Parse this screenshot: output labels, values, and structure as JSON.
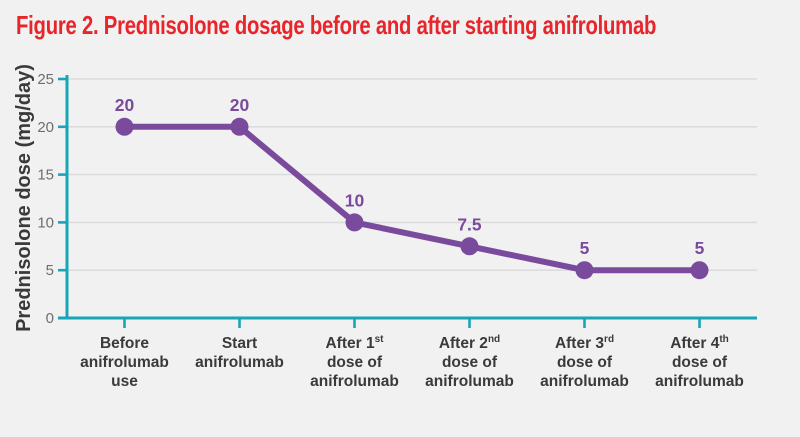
{
  "title": "Figure 2. Prednisolone dosage before and after starting anifrolumab",
  "colors": {
    "title_red": "#E8252B",
    "series_purple": "#7A4B9D",
    "axis_teal": "#17A5B7",
    "gridline": "#DCDCDC",
    "tick_label_gray": "#6E6E6E",
    "category_label_dark": "#3A3A3A",
    "background": "#F1F1F1"
  },
  "chart_data": {
    "type": "line",
    "title": "Figure 2. Prednisolone dosage before and after starting anifrolumab",
    "xlabel": "",
    "ylabel": "Prednisolone dose (mg/day)",
    "ylim": [
      0,
      25
    ],
    "yticks": [
      0,
      5,
      10,
      15,
      20,
      25
    ],
    "grid": true,
    "legend": false,
    "categories": [
      {
        "lines": [
          "Before",
          "anifrolumab",
          "use"
        ]
      },
      {
        "lines": [
          "Start",
          "anifrolumab"
        ]
      },
      {
        "lines": [
          {
            "t": "After 1",
            "sup": "st"
          },
          "dose of",
          "anifrolumab"
        ]
      },
      {
        "lines": [
          {
            "t": "After 2",
            "sup": "nd"
          },
          "dose of",
          "anifrolumab"
        ]
      },
      {
        "lines": [
          {
            "t": "After 3",
            "sup": "rd"
          },
          "dose of",
          "anifrolumab"
        ]
      },
      {
        "lines": [
          {
            "t": "After 4",
            "sup": "th"
          },
          "dose of",
          "anifrolumab"
        ]
      }
    ],
    "series": [
      {
        "name": "Prednisolone dose (mg/day)",
        "values": [
          20,
          20,
          10,
          7.5,
          5,
          5
        ],
        "point_labels": [
          "20",
          "20",
          "10",
          "7.5",
          "5",
          "5"
        ]
      }
    ]
  }
}
